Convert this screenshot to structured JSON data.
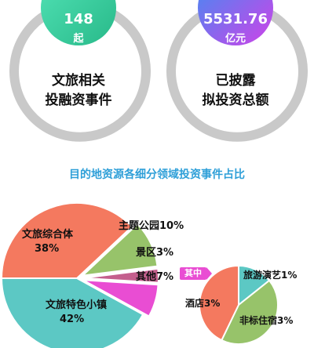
{
  "stats": [
    {
      "value": "148",
      "unit": "起",
      "line1": "文旅相关",
      "line2": "投融资事件"
    },
    {
      "value": "5531.76",
      "unit": "亿元",
      "line1": "已披露",
      "line2": "拟投资总额"
    }
  ],
  "colors": {
    "ring": "#c9c9c9",
    "badge_left": [
      "#43d8ae",
      "#2fc38f"
    ],
    "badge_right": [
      "#4b86f0",
      "#c245e6"
    ],
    "title": "#2e9fd8",
    "qizhong": "#e94dd3"
  },
  "section_title": "目的地资源各细分领域投资事件占比",
  "qizhong_label": "其中",
  "chart_data": [
    {
      "type": "pie",
      "slices": [
        {
          "label": "文旅综合体",
          "pct_text": "38%",
          "value": 38,
          "color": "#f4795f"
        },
        {
          "label": "主题公园",
          "pct_text": "10%",
          "value": 10,
          "color": "#97c36a"
        },
        {
          "label": "景区",
          "pct_text": "3%",
          "value": 3,
          "color": "#c45f8d"
        },
        {
          "label": "其他",
          "pct_text": "7%",
          "value": 7,
          "color": "#e94dd3"
        },
        {
          "label": "文旅特色小镇",
          "pct_text": "42%",
          "value": 42,
          "color": "#5cc8c4"
        }
      ]
    },
    {
      "type": "pie",
      "slices": [
        {
          "label": "旅游演艺",
          "pct_text": "1%",
          "value": 1,
          "color": "#5cc8c4"
        },
        {
          "label": "非标住宿",
          "pct_text": "3%",
          "value": 3,
          "color": "#97c36a"
        },
        {
          "label": "酒店",
          "pct_text": "3%",
          "value": 3,
          "color": "#f4795f"
        }
      ]
    }
  ]
}
